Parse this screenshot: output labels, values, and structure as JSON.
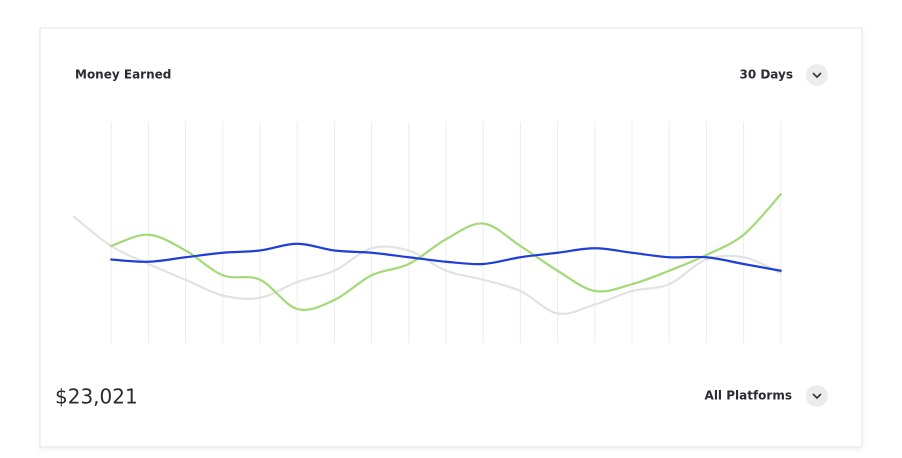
{
  "card": {
    "title": "Money Earned",
    "period": "30 Days",
    "total": "$23,021",
    "platform": "All Platforms"
  },
  "chart_data": {
    "type": "line",
    "categories": [
      null,
      null,
      null,
      null,
      null,
      null,
      null,
      null,
      null,
      null,
      null,
      null,
      null,
      null,
      null,
      null,
      null,
      null,
      null,
      null,
      null
    ],
    "ylim": [
      0,
      100
    ],
    "grid": true,
    "series": [
      {
        "color": "#e2e2e2",
        "values": [
          57,
          44,
          36,
          29,
          22,
          21,
          28,
          33,
          43,
          42,
          33,
          29,
          24,
          14,
          18,
          24,
          27,
          38,
          39,
          32,
          null
        ]
      },
      {
        "color": "#a3d977",
        "values": [
          null,
          44,
          49,
          42,
          31,
          29,
          16,
          20,
          31,
          36,
          47,
          54,
          44,
          33,
          24,
          27,
          33,
          40,
          49,
          67,
          null
        ]
      },
      {
        "color": "#1f3fd6",
        "values": [
          null,
          38,
          37,
          39,
          41,
          42,
          45,
          42,
          41,
          39,
          37,
          36,
          39,
          41,
          43,
          41,
          39,
          39,
          36,
          33,
          null
        ]
      }
    ]
  }
}
